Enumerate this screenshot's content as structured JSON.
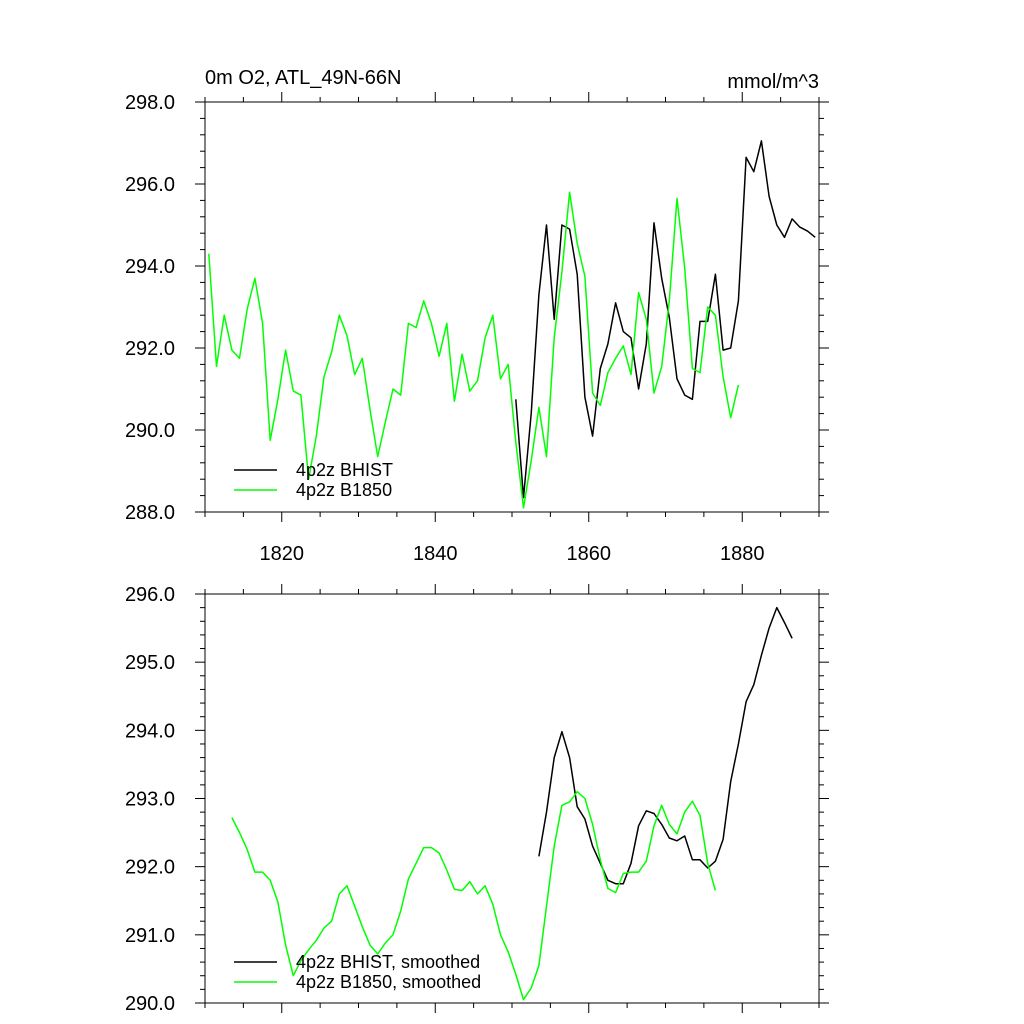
{
  "chart_data": [
    {
      "type": "line",
      "title": "0m O2, ATL_49N-66N",
      "units": "mmol/m^3",
      "xlim": [
        1810,
        1890
      ],
      "ylim": [
        288,
        298
      ],
      "x_ticks": [
        1820,
        1840,
        1860,
        1880
      ],
      "x_tick_labels": [
        "1820",
        "1840",
        "1860",
        "1880"
      ],
      "y_ticks": [
        288,
        290,
        292,
        294,
        296,
        298
      ],
      "y_tick_labels": [
        "288.0",
        "290.0",
        "292.0",
        "294.0",
        "296.0",
        "298.0"
      ],
      "grid": false,
      "legend": "bottom-left",
      "series": [
        {
          "name": "4p2z BHIST",
          "color": "#000000",
          "x": [
            1850.5,
            1851.5,
            1852.5,
            1853.5,
            1854.5,
            1855.5,
            1856.5,
            1857.5,
            1858.5,
            1859.5,
            1860.5,
            1861.5,
            1862.5,
            1863.5,
            1864.5,
            1865.5,
            1866.5,
            1867.5,
            1868.5,
            1869.5,
            1870.5,
            1871.5,
            1872.5,
            1873.5,
            1874.5,
            1875.5,
            1876.5,
            1877.5,
            1878.5,
            1879.5,
            1880.5,
            1881.5,
            1882.5,
            1883.5,
            1884.5,
            1885.5,
            1886.5,
            1887.5,
            1888.5,
            1889.5
          ],
          "y": [
            290.75,
            288.35,
            290.4,
            293.3,
            295.0,
            292.7,
            295.0,
            294.9,
            293.8,
            290.8,
            289.85,
            291.5,
            292.1,
            293.1,
            292.4,
            292.25,
            291.0,
            292.1,
            295.05,
            293.7,
            292.75,
            291.25,
            290.85,
            290.75,
            292.65,
            292.65,
            293.8,
            291.95,
            292.0,
            293.15,
            296.65,
            296.3,
            297.05,
            295.7,
            295.0,
            294.7,
            295.15,
            294.95,
            294.85,
            294.7
          ]
        },
        {
          "name": "4p2z B1850",
          "color": "#00ff00",
          "x": [
            1810.5,
            1811.5,
            1812.5,
            1813.5,
            1814.5,
            1815.5,
            1816.5,
            1817.5,
            1818.5,
            1819.5,
            1820.5,
            1821.5,
            1822.5,
            1823.5,
            1824.5,
            1825.5,
            1826.5,
            1827.5,
            1828.5,
            1829.5,
            1830.5,
            1831.5,
            1832.5,
            1833.5,
            1834.5,
            1835.5,
            1836.5,
            1837.5,
            1838.5,
            1839.5,
            1840.5,
            1841.5,
            1842.5,
            1843.5,
            1844.5,
            1845.5,
            1846.5,
            1847.5,
            1848.5,
            1849.5,
            1850.5,
            1851.5,
            1852.5,
            1853.5,
            1854.5,
            1855.5,
            1856.5,
            1857.5,
            1858.5,
            1859.5,
            1860.5,
            1861.5,
            1862.5,
            1863.5,
            1864.5,
            1865.5,
            1866.5,
            1867.5,
            1868.5,
            1869.5,
            1870.5,
            1871.5,
            1872.5,
            1873.5,
            1874.5,
            1875.5,
            1876.5,
            1877.5,
            1878.5,
            1879.5
          ],
          "y": [
            294.3,
            291.55,
            292.8,
            291.95,
            291.75,
            292.95,
            293.7,
            292.6,
            289.75,
            290.75,
            291.95,
            290.95,
            290.85,
            288.8,
            289.85,
            291.3,
            291.9,
            292.8,
            292.3,
            291.35,
            291.75,
            290.5,
            289.35,
            290.2,
            291.0,
            290.85,
            292.6,
            292.5,
            293.15,
            292.6,
            291.8,
            292.6,
            290.7,
            291.85,
            290.95,
            291.2,
            292.25,
            292.8,
            291.25,
            291.6,
            289.7,
            288.1,
            289.25,
            290.55,
            289.35,
            292.25,
            293.85,
            295.8,
            294.55,
            293.75,
            290.9,
            290.6,
            291.4,
            291.75,
            292.05,
            291.35,
            293.35,
            292.7,
            290.9,
            291.55,
            293.15,
            295.65,
            293.95,
            291.5,
            291.4,
            293.0,
            292.8,
            291.3,
            290.3,
            291.1
          ]
        }
      ]
    },
    {
      "type": "line",
      "xlim": [
        1810,
        1890
      ],
      "ylim": [
        290,
        296
      ],
      "x_ticks": [
        1820,
        1840,
        1860,
        1880
      ],
      "y_ticks": [
        290,
        291,
        292,
        293,
        294,
        295,
        296
      ],
      "y_tick_labels": [
        "290.0",
        "291.0",
        "292.0",
        "293.0",
        "294.0",
        "295.0",
        "296.0"
      ],
      "grid": false,
      "legend": "bottom-left",
      "series": [
        {
          "name": "4p2z BHIST, smoothed",
          "color": "#000000",
          "x": [
            1853.5,
            1854.5,
            1855.5,
            1856.5,
            1857.5,
            1858.5,
            1859.5,
            1860.5,
            1861.5,
            1862.5,
            1863.5,
            1864.5,
            1865.5,
            1866.5,
            1867.5,
            1868.5,
            1869.5,
            1870.5,
            1871.5,
            1872.5,
            1873.5,
            1874.5,
            1875.5,
            1876.5,
            1877.5,
            1878.5,
            1879.5,
            1880.5,
            1881.5,
            1882.5,
            1883.5,
            1884.5,
            1885.5,
            1886.5
          ],
          "y": [
            292.15,
            292.8,
            293.6,
            293.98,
            293.6,
            292.88,
            292.7,
            292.3,
            292.05,
            291.8,
            291.75,
            291.75,
            292.05,
            292.6,
            292.82,
            292.78,
            292.62,
            292.42,
            292.38,
            292.45,
            292.1,
            292.1,
            291.98,
            292.08,
            292.4,
            293.25,
            293.8,
            294.42,
            294.67,
            295.1,
            295.5,
            295.8,
            295.58,
            295.35
          ]
        },
        {
          "name": "4p2z B1850, smoothed",
          "color": "#00ff00",
          "x": [
            1813.5,
            1814.5,
            1815.5,
            1816.5,
            1817.5,
            1818.5,
            1819.5,
            1820.5,
            1821.5,
            1822.5,
            1823.5,
            1824.5,
            1825.5,
            1826.5,
            1827.5,
            1828.5,
            1829.5,
            1830.5,
            1831.5,
            1832.5,
            1833.5,
            1834.5,
            1835.5,
            1836.5,
            1837.5,
            1838.5,
            1839.5,
            1840.5,
            1841.5,
            1842.5,
            1843.5,
            1844.5,
            1845.5,
            1846.5,
            1847.5,
            1848.5,
            1849.5,
            1850.5,
            1851.5,
            1852.5,
            1853.5,
            1854.5,
            1855.5,
            1856.5,
            1857.5,
            1858.5,
            1859.5,
            1860.5,
            1861.5,
            1862.5,
            1863.5,
            1864.5,
            1865.5,
            1866.5,
            1867.5,
            1868.5,
            1869.5,
            1870.5,
            1871.5,
            1872.5,
            1873.5,
            1874.5,
            1875.5,
            1876.5
          ],
          "y": [
            292.72,
            292.5,
            292.25,
            291.92,
            291.92,
            291.8,
            291.48,
            290.85,
            290.4,
            290.62,
            290.78,
            290.92,
            291.1,
            291.2,
            291.6,
            291.72,
            291.42,
            291.12,
            290.85,
            290.72,
            290.88,
            291.0,
            291.35,
            291.82,
            292.05,
            292.28,
            292.28,
            292.2,
            291.95,
            291.67,
            291.65,
            291.78,
            291.6,
            291.72,
            291.45,
            291.0,
            290.75,
            290.42,
            290.05,
            290.22,
            290.55,
            291.42,
            292.3,
            292.9,
            292.95,
            293.1,
            293.0,
            292.62,
            292.1,
            291.68,
            291.62,
            291.9,
            291.92,
            291.92,
            292.08,
            292.6,
            292.9,
            292.62,
            292.48,
            292.8,
            292.96,
            292.75,
            292.05,
            291.65
          ]
        }
      ]
    }
  ]
}
